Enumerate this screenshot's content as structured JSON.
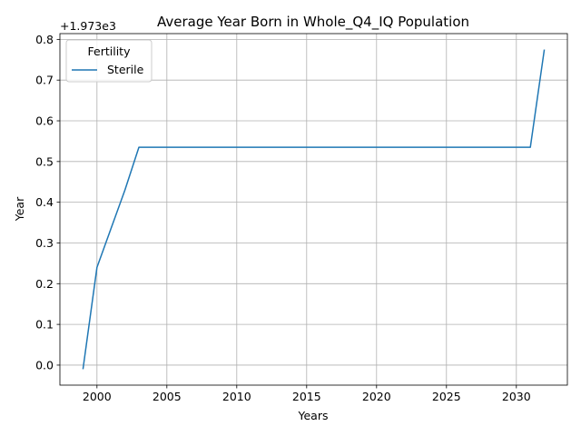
{
  "chart_data": {
    "type": "line",
    "title": "Average Year Born in Whole_Q4_IQ Population",
    "xlabel": "Years",
    "ylabel": "Year",
    "offset_text": "+1.973e3",
    "xlim": [
      1997.35,
      2033.65
    ],
    "ylim": [
      -0.0492,
      0.8142
    ],
    "x_ticks": [
      2000,
      2005,
      2010,
      2015,
      2020,
      2025,
      2030
    ],
    "x_tick_labels": [
      "2000",
      "2005",
      "2010",
      "2015",
      "2020",
      "2025",
      "2030"
    ],
    "y_ticks": [
      0.0,
      0.1,
      0.2,
      0.3,
      0.4,
      0.5,
      0.6,
      0.7,
      0.8
    ],
    "y_tick_labels": [
      "0.0",
      "0.1",
      "0.2",
      "0.3",
      "0.4",
      "0.5",
      "0.6",
      "0.7",
      "0.8"
    ],
    "grid": true,
    "legend": {
      "title": "Fertility",
      "position": "top-left"
    },
    "series": [
      {
        "name": "Sterile",
        "color": "#1f77b4",
        "x": [
          1999,
          2000,
          2001,
          2002,
          2003,
          2004,
          2005,
          2006,
          2007,
          2008,
          2009,
          2010,
          2011,
          2012,
          2013,
          2014,
          2015,
          2016,
          2017,
          2018,
          2019,
          2020,
          2021,
          2022,
          2023,
          2024,
          2025,
          2026,
          2027,
          2028,
          2029,
          2030,
          2031,
          2032
        ],
        "y": [
          -0.01,
          0.24,
          0.335,
          0.43,
          0.535,
          0.535,
          0.535,
          0.535,
          0.535,
          0.535,
          0.535,
          0.535,
          0.535,
          0.535,
          0.535,
          0.535,
          0.535,
          0.535,
          0.535,
          0.535,
          0.535,
          0.535,
          0.535,
          0.535,
          0.535,
          0.535,
          0.535,
          0.535,
          0.535,
          0.535,
          0.535,
          0.535,
          0.535,
          0.775
        ]
      }
    ]
  }
}
